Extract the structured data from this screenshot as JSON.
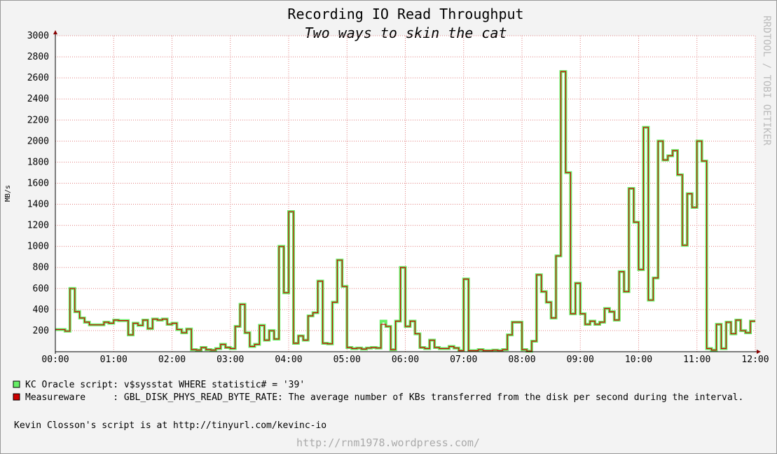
{
  "chart_data": {
    "type": "step-line",
    "title": "Recording IO Read Throughput",
    "subtitle": "Two ways to skin the cat",
    "y_label": "MB/s",
    "watermark": "RRDTOOL / TOBI OETIKER",
    "note": "Kevin Closson's script is at http://tinyurl.com/kevinc-io",
    "footer": "http://rnm1978.wordpress.com/",
    "x": [
      "00:00",
      "00:05",
      "00:10",
      "00:15",
      "00:20",
      "00:25",
      "00:30",
      "00:35",
      "00:40",
      "00:45",
      "00:50",
      "00:55",
      "01:00",
      "01:05",
      "01:10",
      "01:15",
      "01:20",
      "01:25",
      "01:30",
      "01:35",
      "01:40",
      "01:45",
      "01:50",
      "01:55",
      "02:00",
      "02:05",
      "02:10",
      "02:15",
      "02:20",
      "02:25",
      "02:30",
      "02:35",
      "02:40",
      "02:45",
      "02:50",
      "02:55",
      "03:00",
      "03:05",
      "03:10",
      "03:15",
      "03:20",
      "03:25",
      "03:30",
      "03:35",
      "03:40",
      "03:45",
      "03:50",
      "03:55",
      "04:00",
      "04:05",
      "04:10",
      "04:15",
      "04:20",
      "04:25",
      "04:30",
      "04:35",
      "04:40",
      "04:45",
      "04:50",
      "04:55",
      "05:00",
      "05:05",
      "05:10",
      "05:15",
      "05:20",
      "05:25",
      "05:30",
      "05:35",
      "05:40",
      "05:45",
      "05:50",
      "05:55",
      "06:00",
      "06:05",
      "06:10",
      "06:15",
      "06:20",
      "06:25",
      "06:30",
      "06:35",
      "06:40",
      "06:45",
      "06:50",
      "06:55",
      "07:00",
      "07:05",
      "07:10",
      "07:15",
      "07:20",
      "07:25",
      "07:30",
      "07:35",
      "07:40",
      "07:45",
      "07:50",
      "07:55",
      "08:00",
      "08:05",
      "08:10",
      "08:15",
      "08:20",
      "08:25",
      "08:30",
      "08:35",
      "08:40",
      "08:45",
      "08:50",
      "08:55",
      "09:00",
      "09:05",
      "09:10",
      "09:15",
      "09:20",
      "09:25",
      "09:30",
      "09:35",
      "09:40",
      "09:45",
      "09:50",
      "09:55",
      "10:00",
      "10:05",
      "10:10",
      "10:15",
      "10:20",
      "10:25",
      "10:30",
      "10:35",
      "10:40",
      "10:45",
      "10:50",
      "10:55",
      "11:00",
      "11:05",
      "11:10",
      "11:15",
      "11:20",
      "11:25",
      "11:30",
      "11:35",
      "11:40",
      "11:45",
      "11:50",
      "11:55"
    ],
    "series": [
      {
        "name": "KC Oracle script: v$sysstat WHERE statistic# = '39'",
        "color": "#66ee66",
        "values": [
          210,
          210,
          195,
          600,
          380,
          320,
          280,
          255,
          255,
          255,
          280,
          270,
          300,
          295,
          295,
          160,
          270,
          250,
          300,
          220,
          310,
          300,
          310,
          260,
          270,
          210,
          180,
          215,
          20,
          15,
          40,
          20,
          15,
          30,
          70,
          40,
          30,
          240,
          450,
          180,
          50,
          70,
          250,
          110,
          200,
          120,
          1000,
          560,
          1330,
          80,
          150,
          110,
          340,
          370,
          670,
          80,
          75,
          470,
          870,
          620,
          40,
          30,
          35,
          25,
          35,
          40,
          35,
          290,
          240,
          20,
          290,
          800,
          240,
          290,
          170,
          40,
          30,
          110,
          40,
          30,
          30,
          50,
          35,
          10,
          690,
          10,
          10,
          20,
          10,
          10,
          15,
          10,
          20,
          160,
          280,
          280,
          20,
          5,
          100,
          730,
          570,
          470,
          320,
          910,
          2660,
          1700,
          360,
          650,
          360,
          260,
          290,
          260,
          280,
          410,
          380,
          300,
          760,
          570,
          1550,
          1230,
          780,
          2130,
          490,
          700,
          2000,
          1820,
          1860,
          1910,
          1680,
          1010,
          1500,
          1370,
          2000,
          1810,
          30,
          15,
          260,
          30,
          280,
          170,
          300,
          200,
          180,
          290
        ]
      },
      {
        "name": "Measureware     : GBL_DISK_PHYS_READ_BYTE_RATE: The average number of KBs transferred from the disk per second during the interval.",
        "color": "#cc0000",
        "values": [
          210,
          210,
          195,
          600,
          380,
          320,
          280,
          255,
          255,
          255,
          280,
          270,
          300,
          295,
          295,
          160,
          270,
          250,
          300,
          220,
          310,
          300,
          310,
          260,
          270,
          210,
          180,
          215,
          20,
          15,
          40,
          20,
          15,
          30,
          70,
          40,
          30,
          240,
          450,
          180,
          50,
          70,
          250,
          110,
          200,
          120,
          1000,
          560,
          1330,
          80,
          150,
          110,
          340,
          370,
          670,
          80,
          75,
          470,
          870,
          620,
          40,
          30,
          35,
          25,
          35,
          40,
          35,
          260,
          240,
          20,
          290,
          800,
          240,
          290,
          170,
          40,
          30,
          110,
          40,
          30,
          30,
          50,
          35,
          10,
          690,
          10,
          10,
          20,
          10,
          10,
          15,
          10,
          20,
          160,
          280,
          280,
          20,
          5,
          100,
          730,
          570,
          470,
          320,
          910,
          2660,
          1700,
          360,
          650,
          360,
          260,
          290,
          260,
          280,
          410,
          380,
          300,
          760,
          570,
          1550,
          1230,
          780,
          2130,
          490,
          700,
          2000,
          1820,
          1860,
          1910,
          1680,
          1010,
          1500,
          1370,
          2000,
          1810,
          30,
          15,
          260,
          30,
          280,
          170,
          300,
          200,
          180,
          290
        ]
      }
    ],
    "xlim": [
      "00:00",
      "12:00"
    ],
    "xticks": [
      "00:00",
      "01:00",
      "02:00",
      "03:00",
      "04:00",
      "05:00",
      "06:00",
      "07:00",
      "08:00",
      "09:00",
      "10:00",
      "11:00",
      "12:00"
    ],
    "ylim": [
      0,
      3000
    ],
    "yticks": [
      200,
      400,
      600,
      800,
      1000,
      1200,
      1400,
      1600,
      1800,
      2000,
      2200,
      2400,
      2600,
      2800,
      3000
    ],
    "grid": true
  }
}
